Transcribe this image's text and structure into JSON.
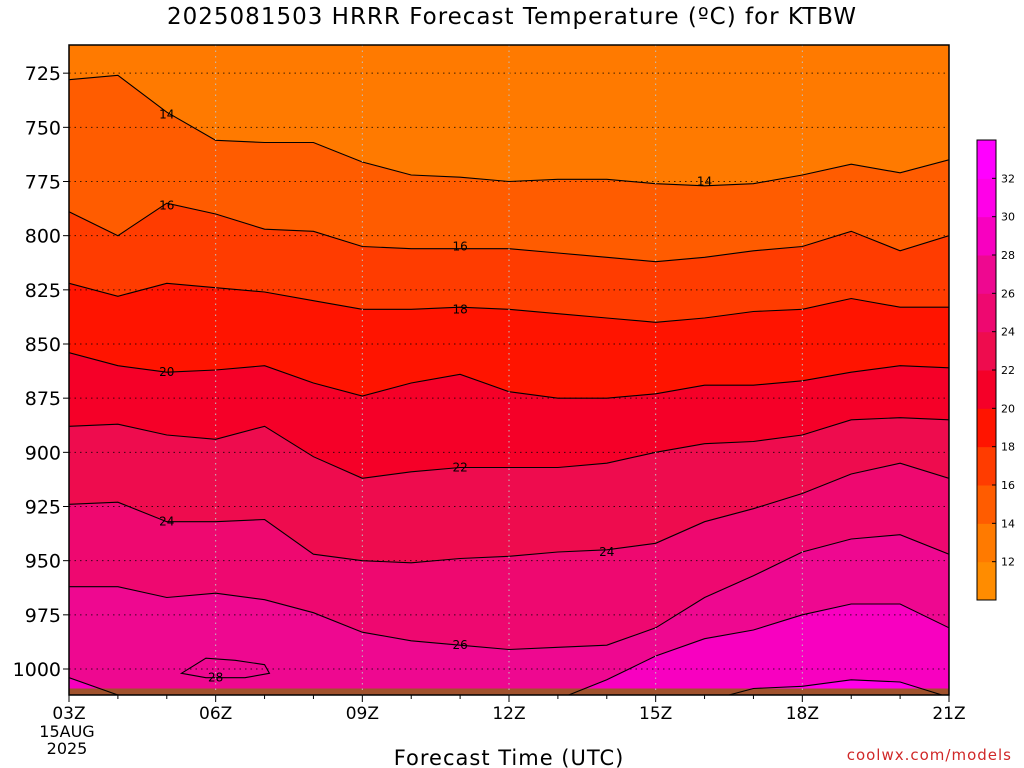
{
  "chart_data": {
    "type": "heatmap",
    "title": "2025081503 HRRR Forecast Temperature (ºC) for KTBW",
    "xlabel": "Forecast Time (UTC)",
    "ylabel": "",
    "x_ticks": [
      "03Z",
      "06Z",
      "09Z",
      "12Z",
      "15Z",
      "18Z",
      "21Z"
    ],
    "x_date_label": [
      "15AUG",
      "2025"
    ],
    "x_hours": [
      3,
      4,
      5,
      6,
      7,
      8,
      9,
      10,
      11,
      12,
      13,
      14,
      15,
      16,
      17,
      18,
      19,
      20,
      21
    ],
    "y_ticks": [
      725,
      750,
      775,
      800,
      825,
      850,
      875,
      900,
      925,
      950,
      975,
      1000
    ],
    "ylim": [
      1012,
      712
    ],
    "grid": true,
    "colorbar": {
      "levels": [
        12,
        14,
        16,
        18,
        20,
        22,
        24,
        26,
        28,
        30,
        32
      ],
      "tick_labels": [
        "12",
        "14",
        "16",
        "18",
        "20",
        "22",
        "24",
        "26",
        "28",
        "30",
        "32"
      ],
      "colors": [
        "#ff8c00",
        "#ff7a00",
        "#ff5c00",
        "#ff3c00",
        "#ff1400",
        "#f50028",
        "#ee0c4e",
        "#ee0870",
        "#ee0890",
        "#f800c0",
        "#ff00e8",
        "#ff00ff"
      ]
    },
    "contours": [
      {
        "value": 14,
        "pressure": [
          728,
          726,
          743,
          756,
          757,
          757,
          766,
          772,
          773,
          775,
          774,
          774,
          776,
          777,
          776,
          772,
          767,
          771,
          765
        ]
      },
      {
        "value": 16,
        "pressure": [
          789,
          800,
          785,
          790,
          797,
          798,
          805,
          806,
          806,
          806,
          808,
          810,
          812,
          810,
          807,
          805,
          798,
          807,
          800
        ]
      },
      {
        "value": 18,
        "pressure": [
          822,
          828,
          822,
          824,
          826,
          830,
          834,
          834,
          833,
          834,
          836,
          838,
          840,
          838,
          835,
          834,
          829,
          833,
          833
        ]
      },
      {
        "value": 20,
        "pressure": [
          854,
          860,
          863,
          862,
          860,
          868,
          874,
          868,
          864,
          872,
          875,
          875,
          873,
          869,
          869,
          867,
          863,
          860,
          861
        ]
      },
      {
        "value": 22,
        "pressure": [
          888,
          887,
          892,
          894,
          888,
          902,
          912,
          909,
          907,
          907,
          907,
          905,
          900,
          896,
          895,
          892,
          885,
          884,
          885
        ]
      },
      {
        "value": 24,
        "pressure": [
          924,
          923,
          932,
          932,
          931,
          947,
          950,
          951,
          949,
          948,
          946,
          945,
          942,
          932,
          926,
          919,
          910,
          905,
          912
        ]
      },
      {
        "value": 26,
        "pressure": [
          962,
          962,
          967,
          965,
          968,
          974,
          983,
          987,
          989,
          991,
          990,
          989,
          981,
          967,
          957,
          946,
          940,
          938,
          947
        ]
      },
      {
        "value": 28,
        "pressure": [
          1004,
          1012,
          1016,
          1018,
          1020,
          1022,
          1023,
          1023,
          1023,
          1023,
          1014,
          1005,
          994,
          986,
          982,
          975,
          970,
          970,
          981
        ]
      },
      {
        "value": 30,
        "pressure": [
          1013,
          1020,
          1025,
          1025,
          1025,
          1025,
          1025,
          1025,
          1025,
          1025,
          1025,
          1025,
          1023,
          1015,
          1009,
          1008,
          1005,
          1006,
          1013
        ]
      }
    ],
    "closed_contour": {
      "value": 28,
      "points": [
        [
          5.3,
          1002
        ],
        [
          5.8,
          995
        ],
        [
          6.4,
          996
        ],
        [
          7.0,
          998
        ],
        [
          7.1,
          1002
        ],
        [
          6.6,
          1004
        ],
        [
          5.8,
          1004
        ],
        [
          5.3,
          1002
        ]
      ]
    },
    "contour_labels": [
      {
        "text": "14",
        "x": 5.0,
        "p": 744
      },
      {
        "text": "14",
        "x": 16.0,
        "p": 775
      },
      {
        "text": "16",
        "x": 5.0,
        "p": 786
      },
      {
        "text": "16",
        "x": 11.0,
        "p": 805
      },
      {
        "text": "18",
        "x": 11.0,
        "p": 834
      },
      {
        "text": "20",
        "x": 5.0,
        "p": 863
      },
      {
        "text": "22",
        "x": 11.0,
        "p": 907
      },
      {
        "text": "24",
        "x": 5.0,
        "p": 932
      },
      {
        "text": "24",
        "x": 14.0,
        "p": 946
      },
      {
        "text": "26",
        "x": 11.0,
        "p": 989
      },
      {
        "text": "28",
        "x": 6.0,
        "p": 1004
      }
    ],
    "surface_color": "#a0522d",
    "surface_pressure": 1009
  },
  "credit": "coolwx.com/models"
}
